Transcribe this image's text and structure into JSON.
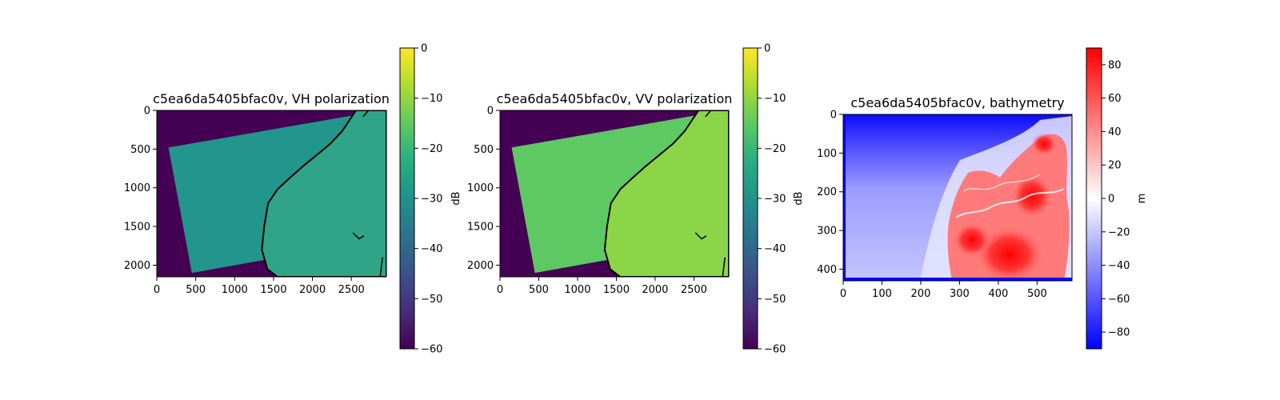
{
  "colors": {
    "viridis_dark": "#440154",
    "viridis_teal": "#22958c",
    "viridis_green": "#5ec962",
    "viridis_yellow": "#fde725",
    "coastline": "#000000",
    "bwr_blue": "#0000ff",
    "bwr_white": "#ffffff",
    "bwr_red": "#ff0000"
  },
  "chart_data": [
    {
      "type": "heatmap",
      "title": "c5ea6da5405bfac0v, VH polarization",
      "colormap": "viridis",
      "xticks": [
        0,
        500,
        1000,
        1500,
        2000,
        2500
      ],
      "yticks": [
        0,
        500,
        1000,
        1500,
        2000
      ],
      "xlim": [
        0,
        2950
      ],
      "ylim": [
        2150,
        0
      ],
      "colorbar": {
        "label": "dB",
        "ticks": [
          0,
          -10,
          -20,
          -30,
          -40,
          -50,
          -60
        ],
        "range": [
          -60,
          0
        ]
      },
      "nodata_value": -60,
      "sea_value": -30,
      "land_value": -22,
      "swath_corners": [
        [
          2600,
          50
        ],
        [
          2950,
          1650
        ],
        [
          450,
          2100
        ],
        [
          150,
          480
        ]
      ]
    },
    {
      "type": "heatmap",
      "title": "c5ea6da5405bfac0v, VV polarization",
      "colormap": "viridis",
      "xticks": [
        0,
        500,
        1000,
        1500,
        2000,
        2500
      ],
      "yticks": [
        0,
        500,
        1000,
        1500,
        2000
      ],
      "xlim": [
        0,
        2950
      ],
      "ylim": [
        2150,
        0
      ],
      "colorbar": {
        "label": "dB",
        "ticks": [
          0,
          -10,
          -20,
          -30,
          -40,
          -50,
          -60
        ],
        "range": [
          -60,
          0
        ]
      },
      "nodata_value": -60,
      "sea_value": -20,
      "land_value": -15,
      "swath_corners": [
        [
          2600,
          50
        ],
        [
          2950,
          1650
        ],
        [
          450,
          2100
        ],
        [
          150,
          480
        ]
      ]
    },
    {
      "type": "heatmap",
      "title": "c5ea6da5405bfac0v, bathymetry",
      "colormap": "bwr",
      "xticks": [
        0,
        100,
        200,
        300,
        400,
        500
      ],
      "yticks": [
        0,
        100,
        200,
        300,
        400
      ],
      "xlim": [
        0,
        590
      ],
      "ylim": [
        430,
        0
      ],
      "colorbar": {
        "label": "m",
        "ticks": [
          80,
          60,
          40,
          20,
          0,
          -20,
          -40,
          -60,
          -80
        ],
        "range": [
          -90,
          90
        ]
      }
    }
  ]
}
